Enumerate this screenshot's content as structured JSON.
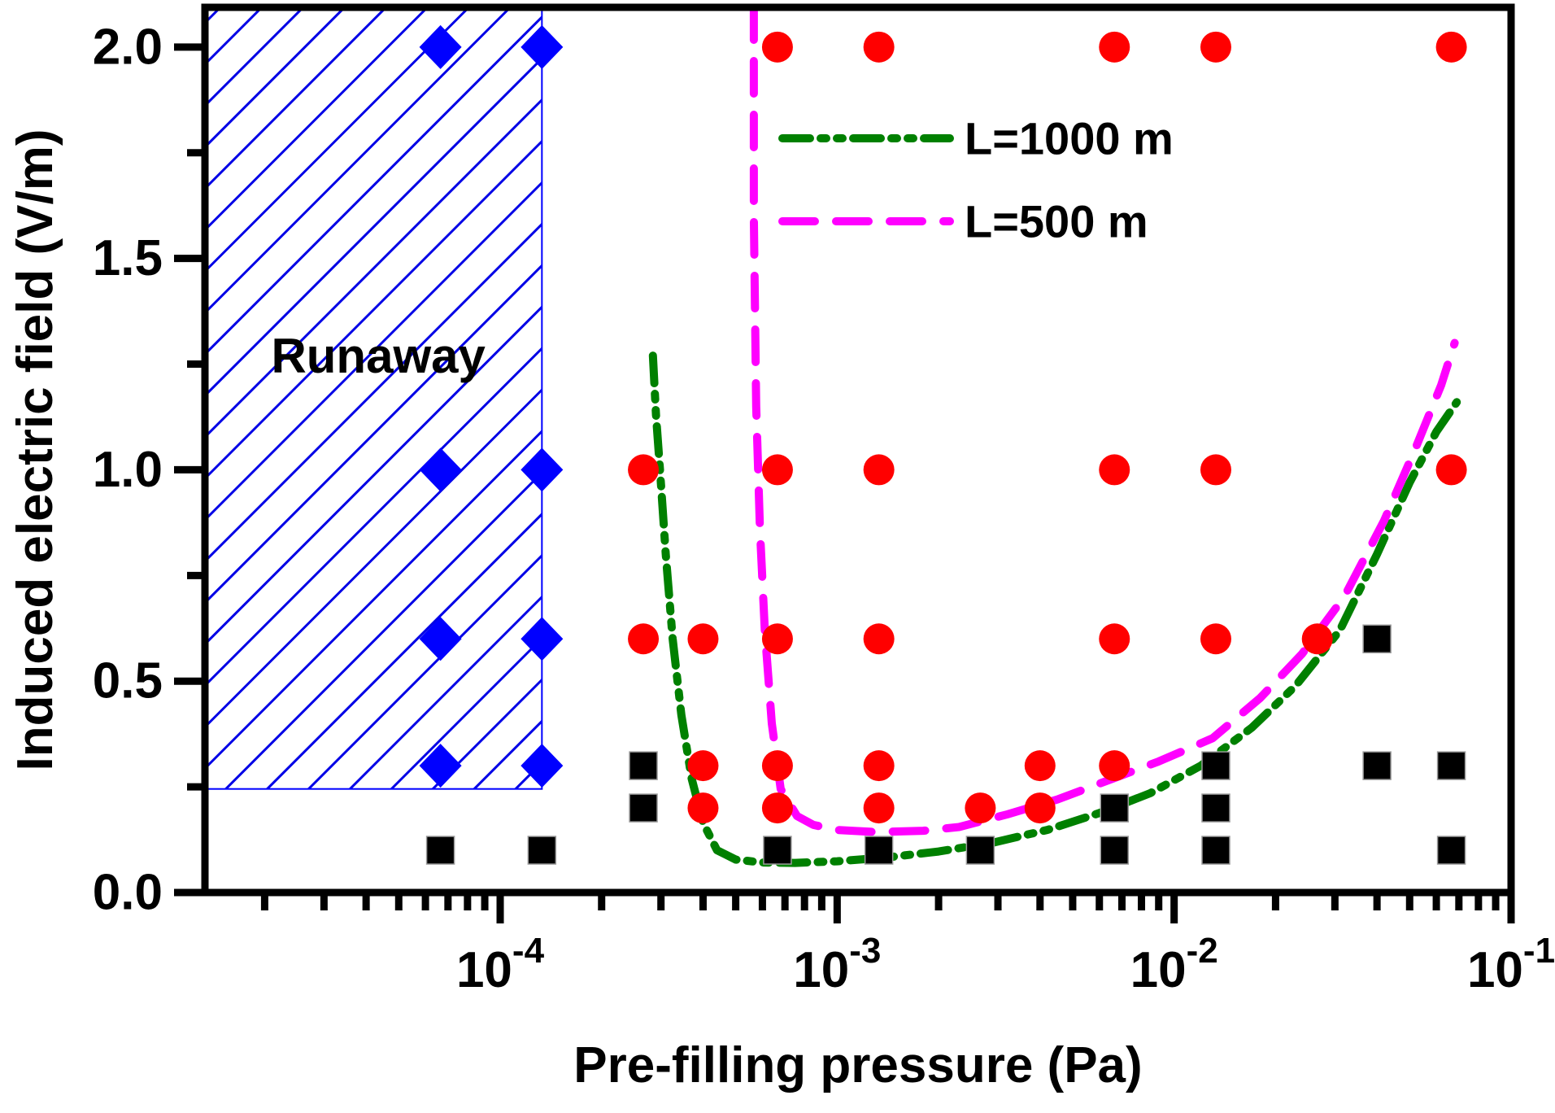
{
  "figure": {
    "background": "#ffffff"
  },
  "chart_data": {
    "type": "scatter",
    "title": "",
    "xlabel": "Pre-filling pressure (Pa)",
    "ylabel": "Induced electric field (V/m)",
    "x_scale": "log",
    "x_range": [
      1.33e-05,
      0.1
    ],
    "y_range": [
      0,
      2.094
    ],
    "grid": false,
    "x_major_ticks": [
      {
        "value": 0.0001,
        "base": "10",
        "exp": "-4"
      },
      {
        "value": 0.001,
        "base": "10",
        "exp": "-3"
      },
      {
        "value": 0.01,
        "base": "10",
        "exp": "-2"
      },
      {
        "value": 0.1,
        "base": "10",
        "exp": "-1"
      }
    ],
    "x_minor_decades": [
      -5,
      -4,
      -3,
      -2
    ],
    "y_major_ticks": [
      {
        "value": 0.0,
        "label": "0.0"
      },
      {
        "value": 0.5,
        "label": "0.5"
      },
      {
        "value": 1.0,
        "label": "1.0"
      },
      {
        "value": 1.5,
        "label": "1.5"
      },
      {
        "value": 2.0,
        "label": "2.0"
      }
    ],
    "y_minor_ticks": [
      0.25,
      0.75,
      1.25,
      1.75
    ],
    "runaway_region": {
      "label": "Runaway",
      "x_min": 1.33e-05,
      "x_max": 0.000133,
      "y_min": 0.245,
      "y_max": 2.094,
      "border_color": "#0000ff",
      "hatch_color": "#0000e6"
    },
    "series": [
      {
        "name": "runaway-points",
        "marker": "diamond",
        "color": "#0000ff",
        "points": [
          [
            6.65e-05,
            2.0
          ],
          [
            0.000133,
            2.0
          ],
          [
            6.65e-05,
            1.0
          ],
          [
            0.000133,
            1.0
          ],
          [
            6.65e-05,
            0.6
          ],
          [
            0.000133,
            0.6
          ],
          [
            6.65e-05,
            0.3
          ],
          [
            0.000133,
            0.3
          ]
        ]
      },
      {
        "name": "breakdown-points",
        "marker": "circle",
        "color": "#ff0000",
        "points": [
          [
            0.000665,
            2.0
          ],
          [
            0.00133,
            2.0
          ],
          [
            0.00665,
            2.0
          ],
          [
            0.0133,
            2.0
          ],
          [
            0.0665,
            2.0
          ],
          [
            0.000266,
            1.0
          ],
          [
            0.000665,
            1.0
          ],
          [
            0.00133,
            1.0
          ],
          [
            0.00665,
            1.0
          ],
          [
            0.0133,
            1.0
          ],
          [
            0.0665,
            1.0
          ],
          [
            0.000266,
            0.6
          ],
          [
            0.0004,
            0.6
          ],
          [
            0.000665,
            0.6
          ],
          [
            0.00133,
            0.6
          ],
          [
            0.00665,
            0.6
          ],
          [
            0.0133,
            0.6
          ],
          [
            0.0266,
            0.6
          ],
          [
            0.0004,
            0.3
          ],
          [
            0.000665,
            0.3
          ],
          [
            0.00133,
            0.3
          ],
          [
            0.004,
            0.3
          ],
          [
            0.00665,
            0.3
          ],
          [
            0.0004,
            0.2
          ],
          [
            0.000665,
            0.2
          ],
          [
            0.00133,
            0.2
          ],
          [
            0.00266,
            0.2
          ],
          [
            0.004,
            0.2
          ]
        ]
      },
      {
        "name": "no-breakdown-points",
        "marker": "square",
        "color": "#000000",
        "points": [
          [
            0.04,
            0.6
          ],
          [
            0.000266,
            0.3
          ],
          [
            0.0133,
            0.3
          ],
          [
            0.04,
            0.3
          ],
          [
            0.0665,
            0.3
          ],
          [
            0.000266,
            0.2
          ],
          [
            0.00665,
            0.2
          ],
          [
            0.0133,
            0.2
          ],
          [
            6.65e-05,
            0.1
          ],
          [
            0.000133,
            0.1
          ],
          [
            0.000665,
            0.1
          ],
          [
            0.00133,
            0.1
          ],
          [
            0.00266,
            0.1
          ],
          [
            0.00665,
            0.1
          ],
          [
            0.0133,
            0.1
          ],
          [
            0.0665,
            0.1
          ]
        ]
      }
    ],
    "curves": [
      {
        "name": "L=1000 m",
        "color": "#008000",
        "dash": [
          34,
          13,
          7,
          13,
          7,
          13
        ],
        "points": [
          [
            0.000284,
            1.27
          ],
          [
            0.00029,
            1.13
          ],
          [
            0.000298,
            1.0
          ],
          [
            0.00031,
            0.8
          ],
          [
            0.000325,
            0.6
          ],
          [
            0.000345,
            0.42
          ],
          [
            0.00037,
            0.27
          ],
          [
            0.0004,
            0.165
          ],
          [
            0.00044,
            0.1
          ],
          [
            0.0005,
            0.078
          ],
          [
            0.0006,
            0.071
          ],
          [
            0.00075,
            0.07
          ],
          [
            0.001,
            0.074
          ],
          [
            0.0014,
            0.083
          ],
          [
            0.002,
            0.097
          ],
          [
            0.0029,
            0.118
          ],
          [
            0.0042,
            0.148
          ],
          [
            0.006,
            0.188
          ],
          [
            0.0085,
            0.235
          ],
          [
            0.012,
            0.3
          ],
          [
            0.017,
            0.39
          ],
          [
            0.023,
            0.49
          ],
          [
            0.031,
            0.62
          ],
          [
            0.04,
            0.8
          ],
          [
            0.05,
            0.97
          ],
          [
            0.06,
            1.09
          ],
          [
            0.069,
            1.16
          ]
        ]
      },
      {
        "name": "L=500 m",
        "color": "#ff00ff",
        "dash": [
          40,
          26
        ],
        "points": [
          [
            0.000566,
            2.094
          ],
          [
            0.000566,
            1.6
          ],
          [
            0.000575,
            1.15
          ],
          [
            0.00059,
            0.86
          ],
          [
            0.00061,
            0.62
          ],
          [
            0.00064,
            0.4
          ],
          [
            0.00068,
            0.245
          ],
          [
            0.00076,
            0.181
          ],
          [
            0.00085,
            0.16
          ],
          [
            0.001,
            0.148
          ],
          [
            0.0013,
            0.143
          ],
          [
            0.0018,
            0.146
          ],
          [
            0.0023,
            0.155
          ],
          [
            0.0032,
            0.185
          ],
          [
            0.0045,
            0.22
          ],
          [
            0.0065,
            0.268
          ],
          [
            0.009,
            0.31
          ],
          [
            0.013,
            0.365
          ],
          [
            0.018,
            0.46
          ],
          [
            0.024,
            0.565
          ],
          [
            0.032,
            0.7
          ],
          [
            0.042,
            0.88
          ],
          [
            0.052,
            1.05
          ],
          [
            0.062,
            1.2
          ],
          [
            0.068,
            1.3
          ]
        ]
      }
    ],
    "legend": {
      "position": "upper-middle",
      "entries": [
        {
          "label": "L=1000 m"
        },
        {
          "label": "L=500 m"
        }
      ]
    }
  }
}
